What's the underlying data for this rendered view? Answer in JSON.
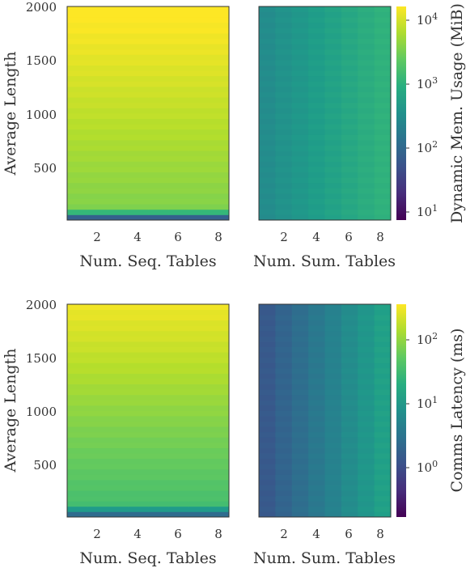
{
  "chart_data": [
    {
      "type": "heatmap",
      "xlabel": "Num. Seq. Tables",
      "ylabel": "Average Length",
      "x_ticks": [
        2,
        4,
        6,
        8
      ],
      "y_ticks": [
        500,
        1000,
        1500,
        2000
      ],
      "xlim": [
        0.5,
        8.5
      ],
      "ylim": [
        0,
        2000
      ],
      "colorbar": {
        "label": "Dynamic Mem. Usage (MiB)",
        "scale": "log",
        "range": [
          10,
          16000
        ],
        "ticks": [
          "10^1",
          "10^2",
          "10^3",
          "10^4"
        ]
      },
      "values": "approx. 10^(3.55 + 0.68*(L/2000)) MiB, uniform across tables; lowest row ~100 MiB"
    },
    {
      "type": "heatmap",
      "xlabel": "Num. Sum. Tables",
      "x_ticks": [
        2,
        4,
        6,
        8
      ],
      "xlim": [
        0.5,
        8.5
      ],
      "ylim": [
        0,
        2000
      ],
      "colorbar": {
        "label": "Dynamic Mem. Usage (MiB)",
        "scale": "log",
        "range": [
          10,
          16000
        ]
      },
      "values": "approx. 10^(2.5 + 0.5*(n-1)/7) MiB, uniform across average length"
    },
    {
      "type": "heatmap",
      "xlabel": "Num. Seq. Tables",
      "ylabel": "Average Length",
      "x_ticks": [
        2,
        4,
        6,
        8
      ],
      "y_ticks": [
        500,
        1000,
        1500,
        2000
      ],
      "xlim": [
        0.5,
        8.5
      ],
      "ylim": [
        0,
        2000
      ],
      "colorbar": {
        "label": "Comms Latency (ms)",
        "scale": "log",
        "range": [
          0.17,
          350
        ],
        "ticks": [
          "10^0",
          "10^1",
          "10^2"
        ]
      },
      "values": "approx. 10^(1.5 + 0.95*(L/2000)) ms, uniform across tables"
    },
    {
      "type": "heatmap",
      "xlabel": "Num. Sum. Tables",
      "x_ticks": [
        2,
        4,
        6,
        8
      ],
      "xlim": [
        0.5,
        8.5
      ],
      "ylim": [
        0,
        2000
      ],
      "colorbar": {
        "label": "Comms Latency (ms)",
        "scale": "log",
        "range": [
          0.17,
          350
        ]
      },
      "values": "approx. 10^(0.15 + 0.9*(n-1)/7) ms, uniform across average length"
    }
  ],
  "labels": {
    "ylabel": "Average Length",
    "xlabel_seq": "Num. Seq. Tables",
    "xlabel_sum": "Num. Sum. Tables",
    "cb_top": "Dynamic Mem. Usage (MiB)",
    "cb_bottom": "Comms Latency (ms)",
    "x_ticks": [
      "2",
      "4",
      "6",
      "8"
    ],
    "y_ticks": [
      "500",
      "1000",
      "1500",
      "2000"
    ]
  }
}
